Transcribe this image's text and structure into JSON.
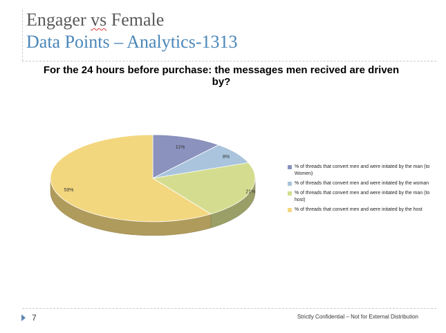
{
  "slide": {
    "title_part1": "Engager ",
    "title_part2": "vs",
    "title_part3": " Female",
    "subtitle": "Data Points – Analytics-1313",
    "page_number": "7",
    "footer": "Strictly Confidential – Not for External Distribution"
  },
  "chart_data": {
    "type": "pie",
    "title": "For the 24 hours before purchase: the messages men recived are driven by?",
    "labels": [
      "% of threads that convert men and were initated by the man (to Women)",
      "% of threads that convert men and were initated by the woman",
      "% of threads that convert men and were initated by the man (to host)",
      "% of threads that convert men and were initated by the host"
    ],
    "values": [
      11,
      8,
      21,
      59
    ],
    "value_labels": [
      "11%",
      "8%",
      "21%",
      "59%"
    ],
    "colors": [
      "#8a92bd",
      "#a9c4dc",
      "#d4dd8f",
      "#f3d77f"
    ],
    "legend_position": "right",
    "style": "3d"
  }
}
